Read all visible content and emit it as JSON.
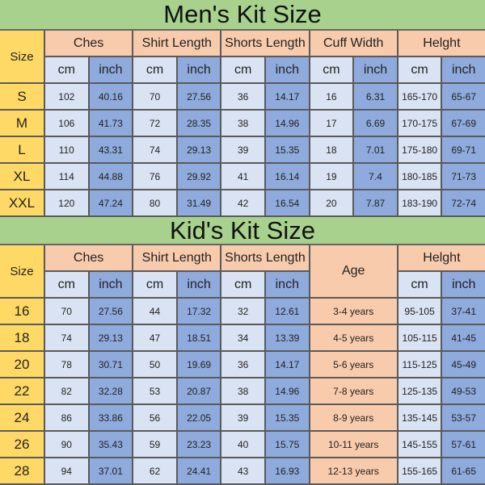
{
  "men": {
    "title": "Men's Kit Size",
    "size_label": "Size",
    "groups": [
      {
        "label": "Ches",
        "units": [
          "cm",
          "inch"
        ]
      },
      {
        "label": "Shirt Length",
        "units": [
          "cm",
          "inch"
        ]
      },
      {
        "label": "Shorts Length",
        "units": [
          "cm",
          "inch"
        ]
      },
      {
        "label": "Cuff Width",
        "units": [
          "cm",
          "inch"
        ]
      },
      {
        "label": "Helght",
        "units": [
          "cm",
          "inch"
        ]
      }
    ],
    "rows": [
      {
        "size": "S",
        "values": [
          "102",
          "40.16",
          "70",
          "27.56",
          "36",
          "14.17",
          "16",
          "6.31",
          "165-170",
          "65-67"
        ]
      },
      {
        "size": "M",
        "values": [
          "106",
          "41.73",
          "72",
          "28.35",
          "38",
          "14.96",
          "17",
          "6.69",
          "170-175",
          "67-69"
        ]
      },
      {
        "size": "L",
        "values": [
          "110",
          "43.31",
          "74",
          "29.13",
          "39",
          "15.35",
          "18",
          "7.01",
          "175-180",
          "69-71"
        ]
      },
      {
        "size": "XL",
        "values": [
          "114",
          "44.88",
          "76",
          "29.92",
          "41",
          "16.14",
          "19",
          "7.4",
          "180-185",
          "71-73"
        ]
      },
      {
        "size": "XXL",
        "values": [
          "120",
          "47.24",
          "80",
          "31.49",
          "42",
          "16.54",
          "20",
          "7.87",
          "183-190",
          "72-74"
        ]
      }
    ]
  },
  "kids": {
    "title": "Kid's Kit Size",
    "size_label": "Size",
    "groups": [
      {
        "label": "Ches",
        "units": [
          "cm",
          "inch"
        ]
      },
      {
        "label": "Shirt Length",
        "units": [
          "cm",
          "inch"
        ]
      },
      {
        "label": "Shorts Length",
        "units": [
          "cm",
          "inch"
        ]
      },
      {
        "label": "Age",
        "units": []
      },
      {
        "label": "Helght",
        "units": [
          "cm",
          "inch"
        ]
      }
    ],
    "rows": [
      {
        "size": "16",
        "values": [
          "70",
          "27.56",
          "44",
          "17.32",
          "32",
          "12.61",
          "3-4 years",
          "95-105",
          "37-41"
        ]
      },
      {
        "size": "18",
        "values": [
          "74",
          "29.13",
          "47",
          "18.51",
          "34",
          "13.39",
          "4-5 years",
          "105-115",
          "41-45"
        ]
      },
      {
        "size": "20",
        "values": [
          "78",
          "30.71",
          "50",
          "19.69",
          "36",
          "14.17",
          "5-6 years",
          "115-125",
          "45-49"
        ]
      },
      {
        "size": "22",
        "values": [
          "82",
          "32.28",
          "53",
          "20.87",
          "38",
          "14.96",
          "7-8 years",
          "125-135",
          "49-53"
        ]
      },
      {
        "size": "24",
        "values": [
          "86",
          "33.86",
          "56",
          "22.05",
          "39",
          "15.35",
          "8-9 years",
          "135-145",
          "53-57"
        ]
      },
      {
        "size": "26",
        "values": [
          "90",
          "35.43",
          "59",
          "23.23",
          "40",
          "15.75",
          "10-11 years",
          "145-155",
          "57-61"
        ]
      },
      {
        "size": "28",
        "values": [
          "94",
          "37.01",
          "62",
          "24.41",
          "43",
          "16.93",
          "12-13 years",
          "155-165",
          "61-65"
        ]
      }
    ]
  }
}
